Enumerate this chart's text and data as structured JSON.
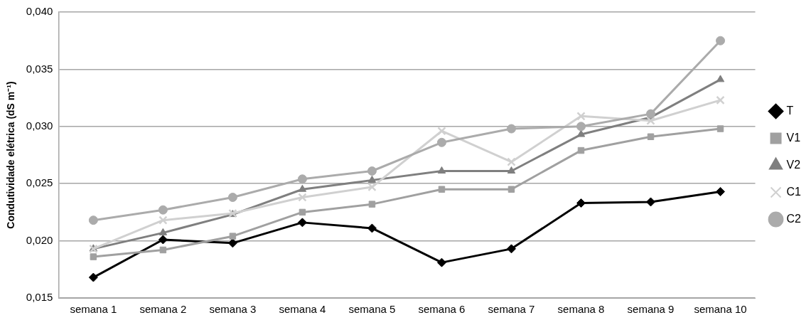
{
  "chart_data": {
    "type": "line",
    "ylabel": "Condutividade elétrica (dS m⁻¹)",
    "categories": [
      "semana 1",
      "semana 2",
      "semana 3",
      "semana 4",
      "semana 5",
      "semana 6",
      "semana 7",
      "semana 8",
      "semana 9",
      "semana 10"
    ],
    "series": [
      {
        "name": "T",
        "color": "#000000",
        "marker": "diamond",
        "values": [
          0.0168,
          0.0201,
          0.0198,
          0.0216,
          0.0211,
          0.0181,
          0.0193,
          0.0233,
          0.0234,
          0.0243
        ]
      },
      {
        "name": "V1",
        "color": "#a0a0a0",
        "marker": "square",
        "values": [
          0.0186,
          0.0192,
          0.0204,
          0.0225,
          0.0232,
          0.0245,
          0.0245,
          0.0279,
          0.0291,
          0.0298
        ]
      },
      {
        "name": "V2",
        "color": "#7f7f7f",
        "marker": "triangle",
        "values": [
          0.0193,
          0.0207,
          0.0223,
          0.0245,
          0.0253,
          0.0261,
          0.0261,
          0.0293,
          0.0308,
          0.0341
        ]
      },
      {
        "name": "C1",
        "color": "#d0d0d0",
        "marker": "cross",
        "values": [
          0.0193,
          0.0218,
          0.0224,
          0.0238,
          0.0247,
          0.0296,
          0.0269,
          0.0309,
          0.0305,
          0.0323
        ]
      },
      {
        "name": "C2",
        "color": "#ababab",
        "marker": "circle",
        "values": [
          0.0218,
          0.0227,
          0.0238,
          0.0254,
          0.0261,
          0.0286,
          0.0298,
          0.03,
          0.0311,
          0.0375
        ]
      }
    ],
    "ylim": [
      0.015,
      0.04
    ],
    "yticks": [
      {
        "value": 0.015,
        "label": "0,015"
      },
      {
        "value": 0.02,
        "label": "0,020"
      },
      {
        "value": 0.025,
        "label": "0,025"
      },
      {
        "value": 0.03,
        "label": "0,030"
      },
      {
        "value": 0.035,
        "label": "0,035"
      },
      {
        "value": 0.04,
        "label": "0,040"
      }
    ],
    "grid": "y",
    "legend": "right"
  }
}
